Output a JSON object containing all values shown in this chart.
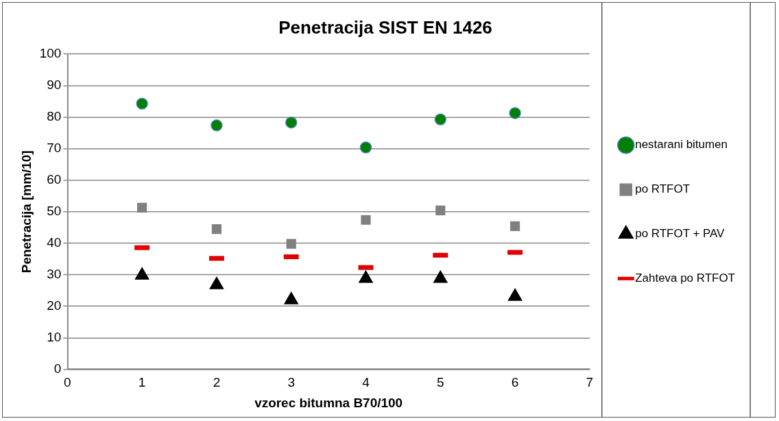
{
  "chart_data": {
    "type": "scatter",
    "title": "Penetracija SIST EN 1426",
    "xlabel": "vzorec bitumna B70/100",
    "ylabel": "Penetracija [mm/10]",
    "x": [
      1,
      2,
      3,
      4,
      5,
      6
    ],
    "series": [
      {
        "name": "nestarani bitumen",
        "color": "#008000",
        "marker": "circle",
        "values": [
          84.3,
          77.4,
          78.3,
          70.4,
          79.3,
          81.3
        ]
      },
      {
        "name": "po RTFOT",
        "color": "#808080",
        "marker": "square",
        "values": [
          51.3,
          44.5,
          39.8,
          47.4,
          50.4,
          45.4
        ]
      },
      {
        "name": "po RTFOT + PAV",
        "color": "#000000",
        "marker": "triangle",
        "values": [
          29.8,
          26.8,
          22.0,
          28.8,
          28.8,
          23.1
        ]
      },
      {
        "name": "Zahteva po RTFOT",
        "color": "#e00000",
        "values": [
          38.6,
          35.2,
          35.7,
          32.3,
          36.2,
          37.1
        ]
      }
    ],
    "xlim": [
      0,
      7
    ],
    "xticks": [
      0,
      1,
      2,
      3,
      4,
      5,
      6,
      7
    ],
    "ylim": [
      0,
      100
    ],
    "yticks": [
      0,
      10,
      20,
      30,
      40,
      50,
      60,
      70,
      80,
      90,
      100
    ],
    "grid": "y",
    "legend": "right"
  }
}
